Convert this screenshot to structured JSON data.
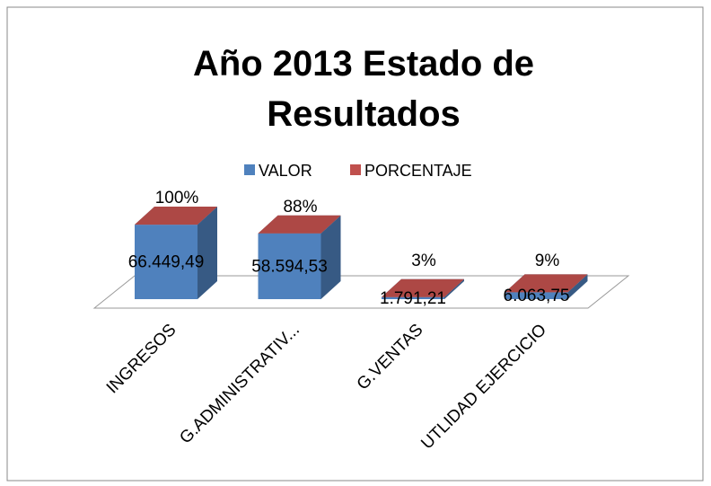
{
  "chart_data": {
    "type": "bar3d_stacked",
    "title": [
      "Año 2013 Estado de",
      "Resultados"
    ],
    "categories": [
      "INGRESOS",
      "G.ADMINISTRATIV...",
      "G.VENTAS",
      "UTLIDAD EJERCICIO"
    ],
    "series": [
      {
        "name": "VALOR",
        "color": "#4f81bd",
        "values": [
          66449.49,
          58594.53,
          1791.21,
          6063.75
        ],
        "value_labels": [
          "66.449,49",
          "58.594,53",
          "1.791,21",
          "6.063,75"
        ]
      },
      {
        "name": "PORCENTAJE",
        "color": "#c0504d",
        "values": [
          100,
          88,
          3,
          9
        ],
        "value_labels": [
          "100%",
          "88%",
          "3%",
          "9%"
        ]
      }
    ],
    "legend": "top"
  }
}
